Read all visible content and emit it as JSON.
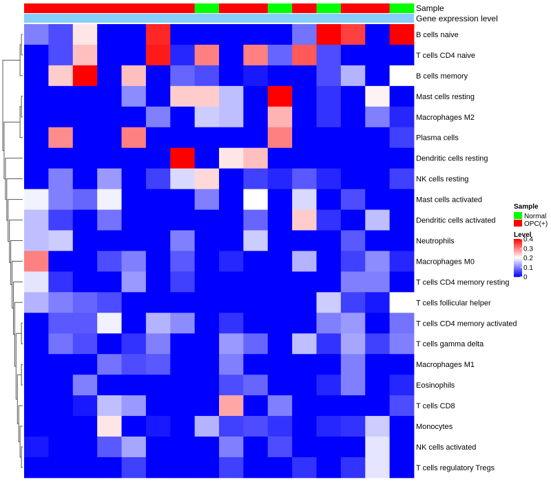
{
  "chart_data": {
    "type": "heatmap",
    "colors": {
      "low": "#0000FF",
      "mid": "#FFFFFF",
      "high": "#FF0000",
      "normal": "#00FF00",
      "opc": "#FF0000",
      "gene_expression_bar": "#87CEFA",
      "dendrogram": "#555555"
    },
    "annotations": {
      "sample_label": "Sample",
      "gene_label": "Gene expression level",
      "samples": [
        "OPC(+)",
        "OPC(+)",
        "OPC(+)",
        "OPC(+)",
        "OPC(+)",
        "OPC(+)",
        "OPC(+)",
        "Normal",
        "OPC(+)",
        "OPC(+)",
        "Normal",
        "OPC(+)",
        "Normal",
        "OPC(+)",
        "OPC(+)",
        "Normal"
      ]
    },
    "legend": {
      "sample_title": "Sample",
      "sample_items": [
        {
          "label": "Normal",
          "color": "#00FF00"
        },
        {
          "label": "OPC(+)",
          "color": "#FF0000"
        }
      ],
      "level_title": "Level",
      "level_ticks": [
        "0.4",
        "0.3",
        "0.2",
        "0.1",
        "0"
      ],
      "level_tick_values": [
        0.4,
        0.3,
        0.2,
        0.1,
        0
      ],
      "range": [
        0,
        0.4
      ]
    },
    "rows": [
      "B cells naive",
      "T cells CD4 naive",
      "B cells memory",
      "Mast cells resting",
      "Macrophages M2",
      "Plasma cells",
      "Dendritic cells resting",
      "NK cells resting",
      "Mast cells activated",
      "Dendritic cells activated",
      "Neutrophils",
      "Macrophages M0",
      "T cells CD4 memory resting",
      "T cells follicular helper",
      "T cells CD4 memory activated",
      "T cells gamma delta",
      "Macrophages M1",
      "Eosinophils",
      "T cells CD8",
      "Monocytes",
      "NK cells activated",
      "T cells regulatory  Tregs"
    ],
    "values": [
      [
        0.1,
        0.06,
        0.22,
        0.0,
        0.0,
        0.37,
        0.0,
        0.0,
        0.0,
        0.0,
        0.0,
        0.09,
        0.4,
        0.35,
        0.0,
        0.4
      ],
      [
        0.0,
        0.06,
        0.25,
        0.0,
        0.0,
        0.38,
        0.03,
        0.3,
        0.0,
        0.3,
        0.08,
        0.33,
        0.06,
        0.0,
        0.0,
        0.0
      ],
      [
        0.0,
        0.24,
        0.4,
        0.0,
        0.25,
        0.0,
        0.08,
        0.06,
        0.0,
        0.02,
        0.0,
        0.0,
        0.06,
        0.14,
        0.0,
        0.2
      ],
      [
        0.0,
        0.0,
        0.0,
        0.0,
        0.11,
        0.0,
        0.24,
        0.24,
        0.15,
        0.0,
        0.4,
        0.0,
        0.04,
        0.0,
        0.21,
        0.0
      ],
      [
        0.0,
        0.0,
        0.0,
        0.0,
        0.0,
        0.1,
        0.0,
        0.16,
        0.15,
        0.0,
        0.26,
        0.0,
        0.04,
        0.0,
        0.1,
        0.03
      ],
      [
        0.0,
        0.29,
        0.0,
        0.0,
        0.3,
        0.0,
        0.0,
        0.0,
        0.0,
        0.0,
        0.3,
        0.0,
        0.0,
        0.0,
        0.0,
        0.05
      ],
      [
        0.0,
        0.0,
        0.0,
        0.0,
        0.0,
        0.0,
        0.4,
        0.0,
        0.22,
        0.25,
        0.0,
        0.0,
        0.0,
        0.0,
        0.0,
        0.0
      ],
      [
        0.0,
        0.1,
        0.0,
        0.12,
        0.0,
        0.05,
        0.17,
        0.23,
        0.0,
        0.05,
        0.03,
        0.07,
        0.03,
        0.0,
        0.0,
        0.05
      ],
      [
        0.19,
        0.1,
        0.08,
        0.19,
        0.0,
        0.0,
        0.0,
        0.1,
        0.0,
        0.2,
        0.0,
        0.17,
        0.0,
        0.06,
        0.0,
        0.0
      ],
      [
        0.15,
        0.05,
        0.0,
        0.09,
        0.0,
        0.0,
        0.0,
        0.0,
        0.0,
        0.08,
        0.0,
        0.24,
        0.04,
        0.0,
        0.15,
        0.0
      ],
      [
        0.15,
        0.16,
        0.0,
        0.0,
        0.0,
        0.0,
        0.1,
        0.0,
        0.0,
        0.16,
        0.0,
        0.0,
        0.0,
        0.07,
        0.0,
        0.0
      ],
      [
        0.3,
        0.0,
        0.0,
        0.06,
        0.1,
        0.0,
        0.07,
        0.0,
        0.03,
        0.0,
        0.0,
        0.14,
        0.0,
        0.05,
        0.11,
        0.03
      ],
      [
        0.18,
        0.04,
        0.0,
        0.0,
        0.12,
        0.0,
        0.05,
        0.0,
        0.0,
        0.0,
        0.0,
        0.0,
        0.0,
        0.1,
        0.1,
        0.0
      ],
      [
        0.14,
        0.1,
        0.08,
        0.06,
        0.0,
        0.0,
        0.0,
        0.0,
        0.0,
        0.0,
        0.0,
        0.0,
        0.16,
        0.05,
        0.02,
        0.2
      ],
      [
        0.0,
        0.07,
        0.07,
        0.19,
        0.0,
        0.14,
        0.11,
        0.0,
        0.04,
        0.0,
        0.0,
        0.0,
        0.1,
        0.12,
        0.0,
        0.09
      ],
      [
        0.0,
        0.09,
        0.06,
        0.0,
        0.04,
        0.1,
        0.0,
        0.0,
        0.12,
        0.08,
        0.0,
        0.15,
        0.04,
        0.13,
        0.05,
        0.1
      ],
      [
        0.0,
        0.0,
        0.0,
        0.09,
        0.06,
        0.07,
        0.0,
        0.0,
        0.1,
        0.0,
        0.0,
        0.0,
        0.0,
        0.1,
        0.0,
        0.0
      ],
      [
        0.0,
        0.0,
        0.1,
        0.0,
        0.0,
        0.0,
        0.0,
        0.0,
        0.06,
        0.08,
        0.0,
        0.0,
        0.03,
        0.1,
        0.0,
        0.03
      ],
      [
        0.0,
        0.0,
        0.02,
        0.15,
        0.12,
        0.0,
        0.0,
        0.0,
        0.27,
        0.0,
        0.1,
        0.0,
        0.0,
        0.0,
        0.0,
        0.06
      ],
      [
        0.0,
        0.0,
        0.0,
        0.22,
        0.0,
        0.02,
        0.0,
        0.14,
        0.05,
        0.06,
        0.04,
        0.0,
        0.03,
        0.04,
        0.16,
        0.0
      ],
      [
        0.02,
        0.0,
        0.0,
        0.07,
        0.13,
        0.0,
        0.0,
        0.0,
        0.1,
        0.0,
        0.06,
        0.0,
        0.0,
        0.0,
        0.18,
        0.0
      ],
      [
        0.0,
        0.0,
        0.0,
        0.0,
        0.05,
        0.0,
        0.0,
        0.0,
        0.05,
        0.0,
        0.0,
        0.04,
        0.0,
        0.04,
        0.18,
        0.0
      ]
    ]
  }
}
